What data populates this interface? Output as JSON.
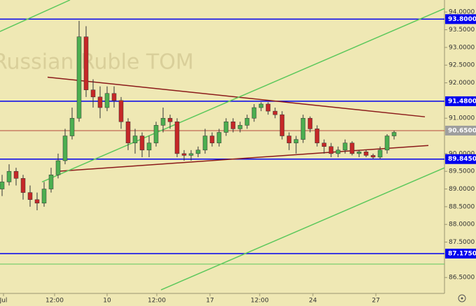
{
  "chart_data": {
    "type": "candlestick",
    "watermark": "Russian Ruble TOM",
    "x": [
      0,
      1,
      2,
      3,
      4,
      5,
      6,
      7,
      8,
      9,
      10,
      11,
      12,
      13,
      14,
      15,
      16,
      17,
      18,
      19,
      20,
      21,
      22,
      23,
      24,
      25,
      26,
      27,
      28,
      29,
      30,
      31,
      32,
      33,
      34,
      35,
      36,
      37,
      38,
      39,
      40,
      41,
      42,
      43,
      44,
      45,
      46,
      47,
      48,
      49,
      50,
      51,
      52,
      53,
      54,
      55,
      56
    ],
    "ohlc": [
      [
        89.0,
        89.4,
        88.8,
        89.2
      ],
      [
        89.2,
        89.7,
        89.1,
        89.5
      ],
      [
        89.5,
        89.6,
        89.1,
        89.3
      ],
      [
        89.3,
        89.4,
        88.7,
        88.9
      ],
      [
        88.9,
        89.1,
        88.5,
        88.7
      ],
      [
        88.7,
        88.9,
        88.4,
        88.6
      ],
      [
        88.6,
        89.2,
        88.5,
        89.0
      ],
      [
        89.0,
        89.6,
        88.9,
        89.4
      ],
      [
        89.4,
        90.0,
        89.3,
        89.8
      ],
      [
        89.8,
        90.7,
        89.7,
        90.5
      ],
      [
        90.5,
        91.3,
        90.4,
        91.0
      ],
      [
        91.0,
        93.75,
        90.9,
        93.3
      ],
      [
        93.3,
        93.6,
        91.6,
        91.8
      ],
      [
        91.8,
        92.1,
        91.3,
        91.6
      ],
      [
        91.6,
        91.9,
        91.0,
        91.3
      ],
      [
        91.3,
        91.9,
        91.2,
        91.7
      ],
      [
        91.7,
        91.9,
        91.3,
        91.5
      ],
      [
        91.5,
        91.6,
        90.7,
        90.9
      ],
      [
        90.9,
        91.0,
        90.1,
        90.3
      ],
      [
        90.3,
        90.7,
        90.0,
        90.5
      ],
      [
        90.5,
        90.6,
        89.9,
        90.1
      ],
      [
        90.1,
        90.5,
        89.9,
        90.3
      ],
      [
        90.3,
        90.9,
        90.2,
        90.8
      ],
      [
        90.8,
        91.3,
        90.6,
        91.0
      ],
      [
        91.0,
        91.1,
        90.7,
        90.9
      ],
      [
        90.9,
        91.0,
        89.9,
        90.0
      ],
      [
        90.0,
        90.1,
        89.8,
        89.95
      ],
      [
        89.95,
        90.1,
        89.8,
        90.0
      ],
      [
        90.0,
        90.2,
        89.9,
        90.1
      ],
      [
        90.1,
        90.7,
        90.0,
        90.5
      ],
      [
        90.5,
        90.6,
        90.2,
        90.3
      ],
      [
        90.3,
        90.7,
        90.2,
        90.6
      ],
      [
        90.6,
        91.0,
        90.5,
        90.9
      ],
      [
        90.9,
        91.0,
        90.6,
        90.7
      ],
      [
        90.7,
        90.9,
        90.6,
        90.8
      ],
      [
        90.8,
        91.1,
        90.7,
        91.0
      ],
      [
        91.0,
        91.4,
        90.9,
        91.3
      ],
      [
        91.3,
        91.45,
        91.2,
        91.4
      ],
      [
        91.4,
        91.45,
        91.1,
        91.2
      ],
      [
        91.2,
        91.3,
        91.0,
        91.1
      ],
      [
        91.1,
        91.2,
        90.4,
        90.5
      ],
      [
        90.5,
        90.6,
        90.1,
        90.3
      ],
      [
        90.3,
        90.5,
        90.0,
        90.4
      ],
      [
        90.4,
        91.1,
        90.3,
        91.0
      ],
      [
        91.0,
        91.05,
        90.6,
        90.7
      ],
      [
        90.7,
        90.8,
        90.2,
        90.3
      ],
      [
        90.3,
        90.4,
        90.0,
        90.2
      ],
      [
        90.2,
        90.3,
        89.9,
        90.0
      ],
      [
        90.0,
        90.2,
        89.9,
        90.1
      ],
      [
        90.1,
        90.4,
        90.0,
        90.3
      ],
      [
        90.3,
        90.35,
        89.95,
        90.0
      ],
      [
        90.0,
        90.1,
        89.9,
        90.05
      ],
      [
        90.05,
        90.1,
        89.9,
        89.95
      ],
      [
        89.95,
        90.0,
        89.85,
        89.9
      ],
      [
        89.9,
        90.2,
        89.85,
        90.1
      ],
      [
        90.1,
        90.55,
        90.0,
        90.5
      ],
      [
        90.5,
        90.65,
        90.4,
        90.6
      ]
    ],
    "up_color": "#4caf50",
    "down_color": "#c62828",
    "xlim": [
      -0.3,
      63.2
    ],
    "ylim": [
      86.05,
      94.34
    ],
    "xticks": [
      {
        "value": 0.2,
        "label": "Jul"
      },
      {
        "value": 7.5,
        "label": "12:00"
      },
      {
        "value": 15,
        "label": "10"
      },
      {
        "value": 22.1,
        "label": "12:00"
      },
      {
        "value": 29.7,
        "label": "17"
      },
      {
        "value": 36.8,
        "label": "12:00"
      },
      {
        "value": 44.4,
        "label": "24"
      },
      {
        "value": 53.4,
        "label": "27"
      }
    ],
    "yticks": [
      {
        "value": 94,
        "label": "94.0000"
      },
      {
        "value": 93.5,
        "label": "93.5000"
      },
      {
        "value": 93,
        "label": "93.0000"
      },
      {
        "value": 92.5,
        "label": "92.5000"
      },
      {
        "value": 92,
        "label": "92.0000"
      },
      {
        "value": 91,
        "label": "91.0000"
      },
      {
        "value": 90,
        "label": "90.0000"
      },
      {
        "value": 89.5,
        "label": "89.5000"
      },
      {
        "value": 89,
        "label": "89.0000"
      },
      {
        "value": 88.5,
        "label": "88.5000"
      },
      {
        "value": 88,
        "label": "88.0000"
      },
      {
        "value": 87.5,
        "label": "87.5000"
      },
      {
        "value": 86.5,
        "label": "86.5000"
      }
    ],
    "levels": [
      {
        "value": 93.8,
        "label": "93.8000",
        "color": "#0000ee"
      },
      {
        "value": 91.48,
        "label": "91.4800",
        "color": "#0000ee"
      },
      {
        "value": 90.65,
        "label": "90.6500",
        "color": "#b5473a"
      },
      {
        "value": 89.845,
        "label": "89.8450",
        "color": "#0000ee"
      },
      {
        "value": 87.175,
        "label": "87.1750",
        "color": "#0000ee"
      },
      {
        "value": 86.88,
        "color": "#5cc85c"
      }
    ],
    "trendlines": [
      {
        "x": [
          6.5,
          60.4
        ],
        "y": [
          92.16,
          91.04
        ],
        "color": "#8b1a1a"
      },
      {
        "x": [
          7.9,
          60.9
        ],
        "y": [
          89.5,
          90.23
        ],
        "color": "#8b1a1a"
      },
      {
        "x": [
          -0.3,
          9.7
        ],
        "y": [
          93.45,
          94.34
        ],
        "color": "#5cc85c"
      },
      {
        "x": [
          5.7,
          63.2
        ],
        "y": [
          89.2,
          94.1
        ],
        "color": "#5cc85c"
      },
      {
        "x": [
          22.7,
          63.2
        ],
        "y": [
          86.15,
          89.6
        ],
        "color": "#5cc85c"
      }
    ]
  }
}
